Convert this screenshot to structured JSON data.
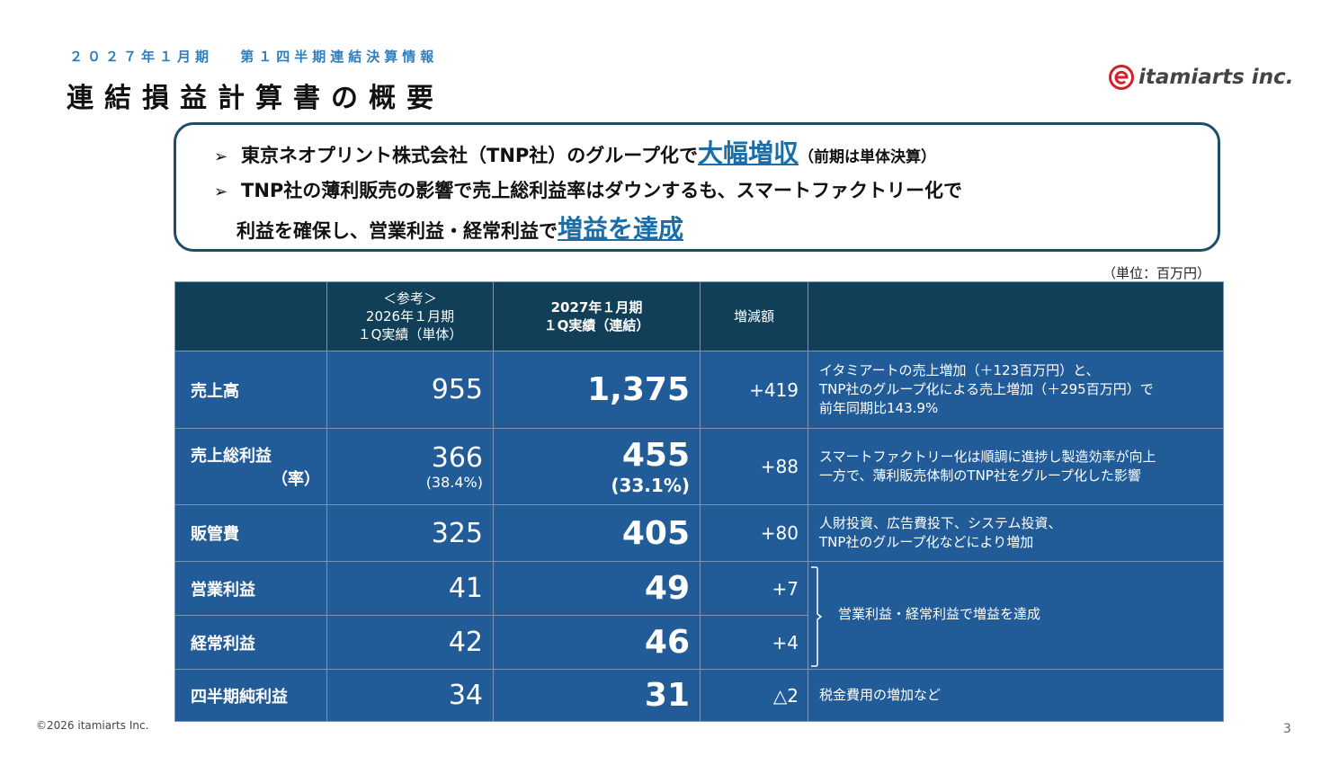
{
  "header": {
    "subtitle": "２０２７年１月期　 第１四半期連結決算情報",
    "title": "連結損益計算書の概要",
    "logo_text": "itamiarts inc.",
    "logo_icon": "e-swirl-logo-icon",
    "brand_color": "#d4202a"
  },
  "summary": {
    "bullet_icon": "➢",
    "line1_pre": "東京ネオプリント株式会社（TNP社）のグループ化で",
    "line1_highlight": "大幅増収",
    "line1_post": "（前期は単体決算）",
    "line2": "TNP社の薄利販売の影響で売上総利益率はダウンするも、スマートファクトリー化で",
    "line3_pre": "利益を確保し、営業利益・経常利益で",
    "line3_highlight": "増益を達成"
  },
  "unit_label": "（単位：百万円）",
  "table": {
    "headers": {
      "prior_line1": "＜参考＞",
      "prior_line2": "2026年１月期",
      "prior_line3": "１Q実績（単体）",
      "current_line1": "2027年１月期",
      "current_line2": "１Q実績（連結）",
      "diff": "増減額"
    },
    "rows": [
      {
        "label": "売上高",
        "prior": "955",
        "current": "1,375",
        "diff": "+419",
        "note1": "イタミアートの売上増加（＋123百万円）と、",
        "note2": "TNP社のグループ化による売上増加（＋295百万円）で",
        "note3": "前年同期比143.9%"
      },
      {
        "label": "売上総利益",
        "label_sub": "（率）",
        "prior": "366",
        "prior_pct": "(38.4%)",
        "current": "455",
        "current_pct": "(33.1%)",
        "diff": "+88",
        "note1": "スマートファクトリー化は順調に進捗し製造効率が向上",
        "note2": "一方で、薄利販売体制のTNP社をグループ化した影響"
      },
      {
        "label": "販管費",
        "prior": "325",
        "current": "405",
        "diff": "+80",
        "note1": "人財投資、広告費投下、システム投資、",
        "note2": "TNP社のグループ化などにより増加"
      },
      {
        "label": "営業利益",
        "prior": "41",
        "current": "49",
        "diff": "+7"
      },
      {
        "label": "経常利益",
        "prior": "42",
        "current": "46",
        "diff": "+4"
      },
      {
        "label": "四半期純利益",
        "prior": "34",
        "current": "31",
        "diff": "△2",
        "note1": "税金費用の増加など"
      }
    ],
    "bracket_note": "営業利益・経常利益で増益を達成"
  },
  "footer": {
    "copyright": "©2026 itamiarts Inc.",
    "page_number": "3"
  }
}
